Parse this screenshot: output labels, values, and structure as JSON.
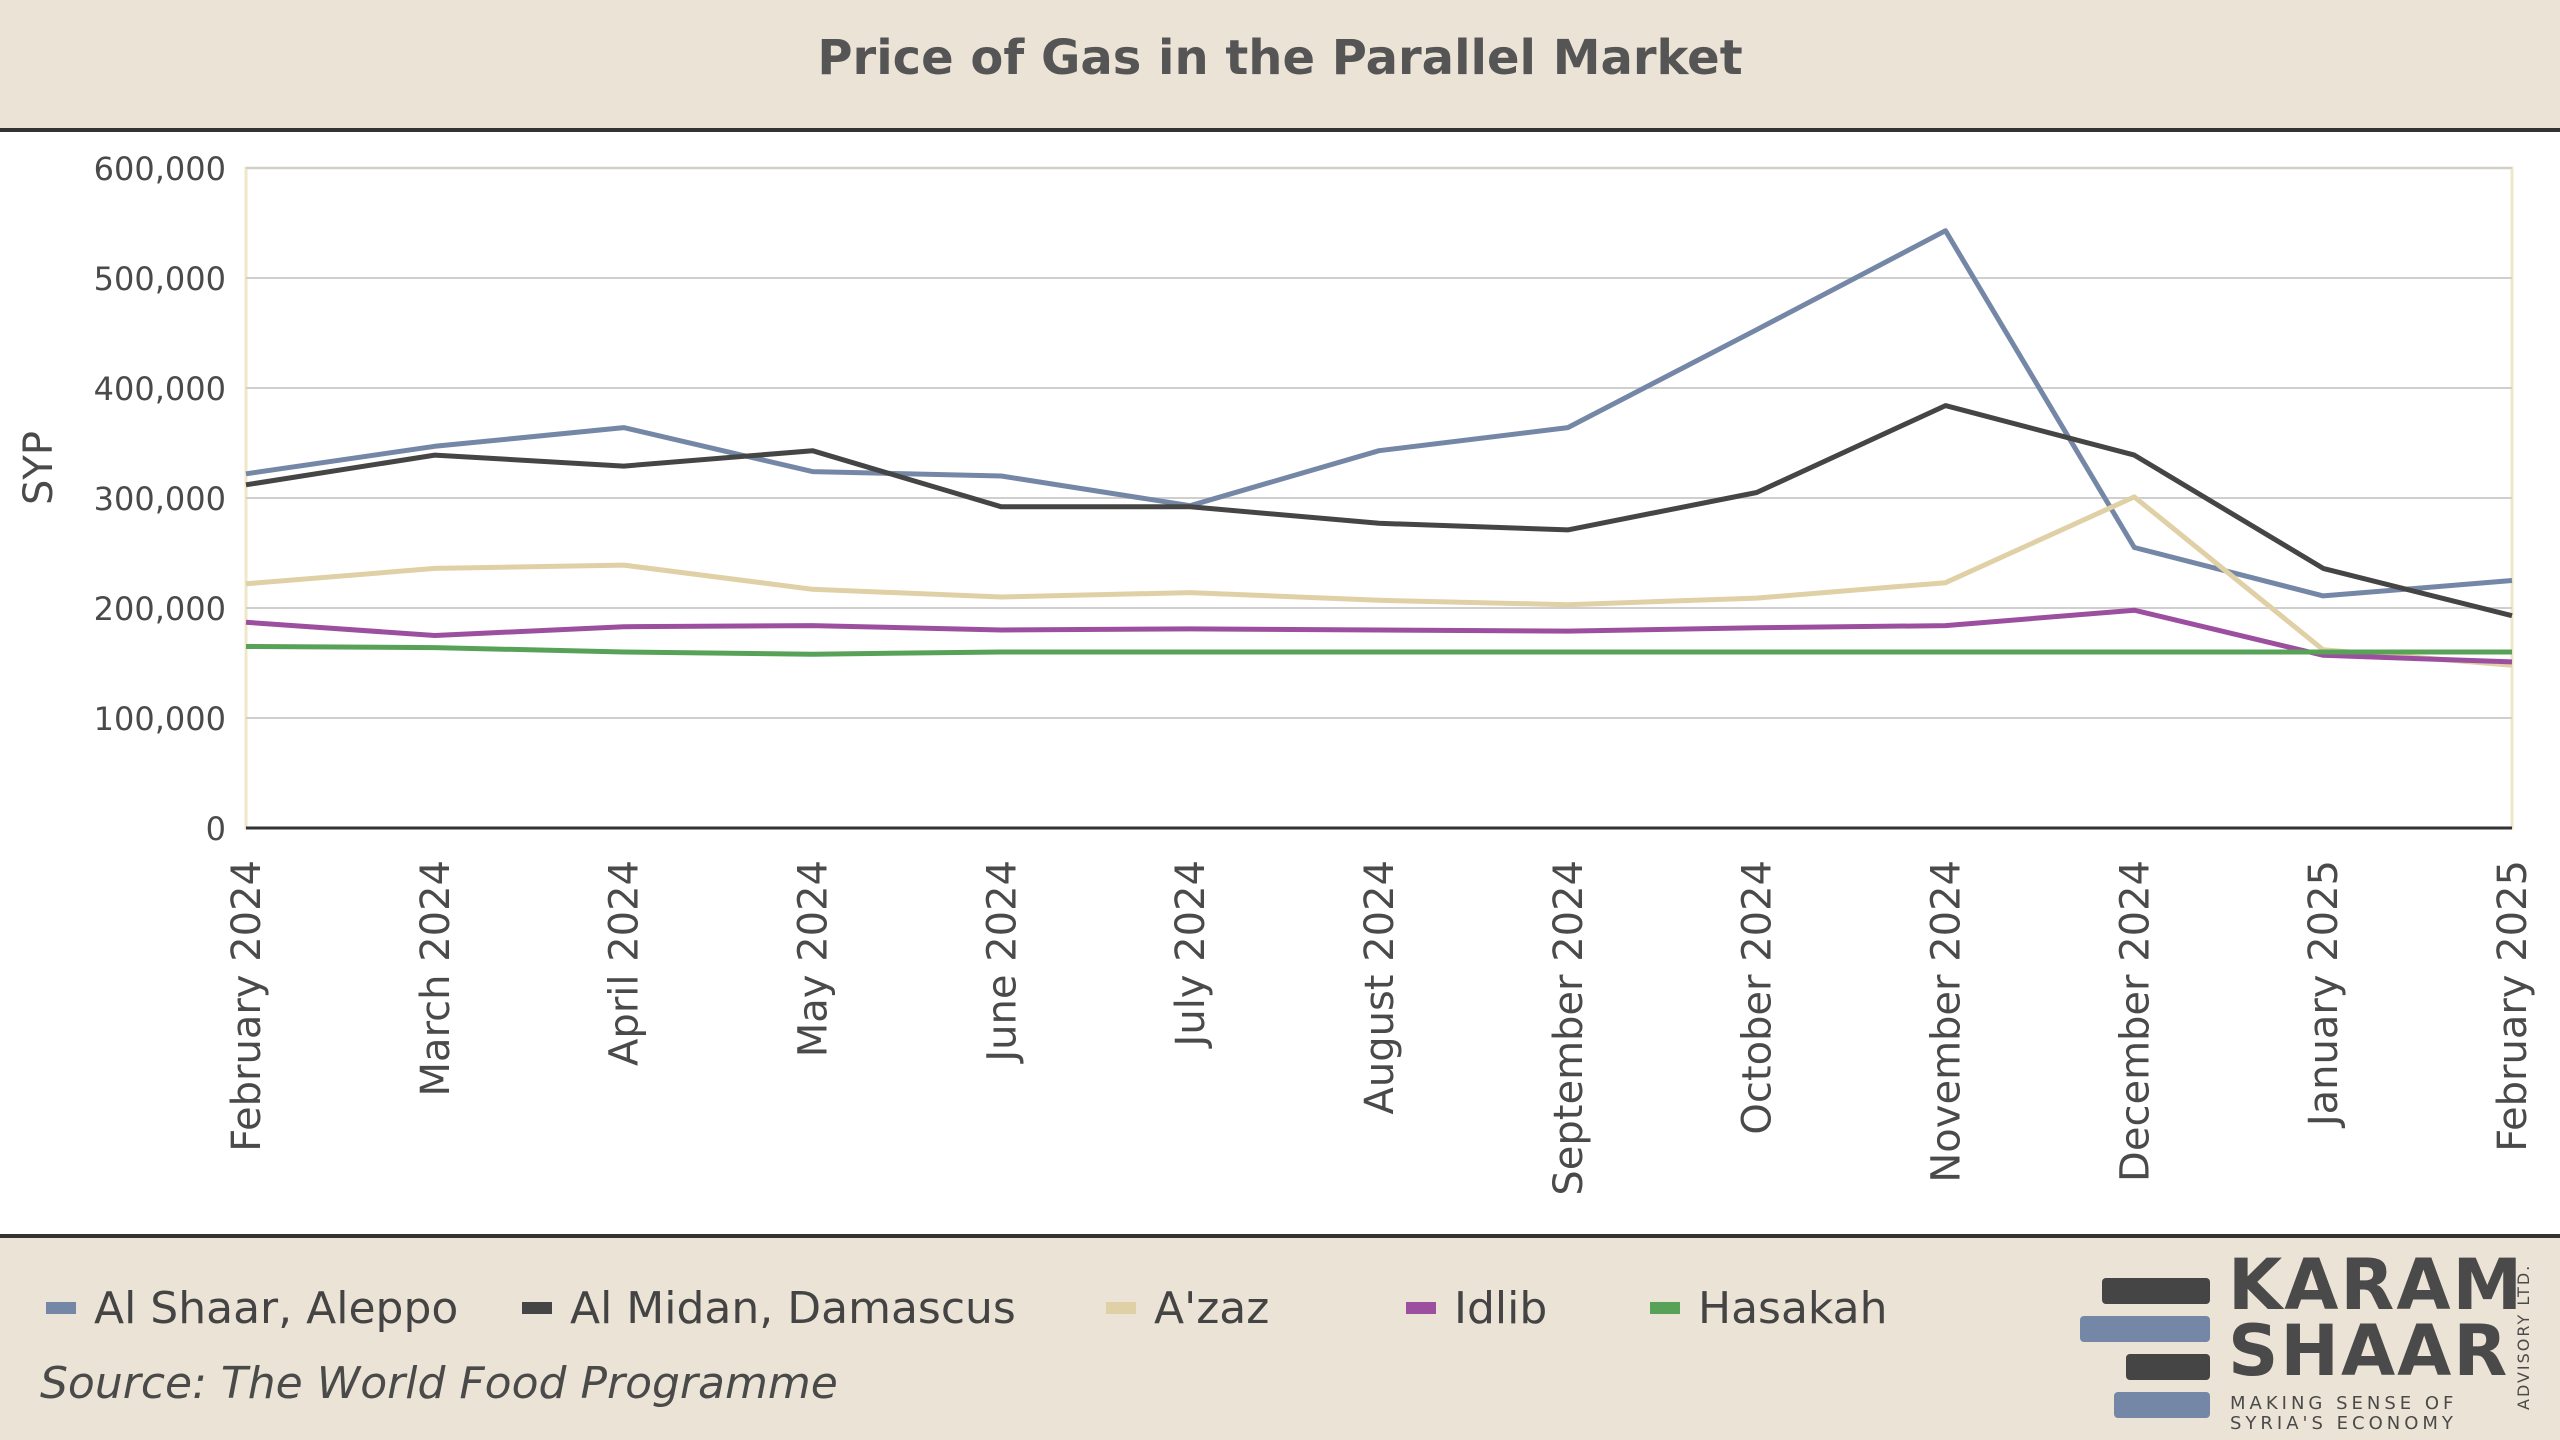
{
  "header": {
    "title": "Price of Gas in the Parallel Market"
  },
  "chart_data": {
    "type": "line",
    "title": "Price of Gas in the Parallel Market",
    "xlabel": "",
    "ylabel": "SYP",
    "ylim": [
      0,
      600000
    ],
    "yticks": [
      0,
      100000,
      200000,
      300000,
      400000,
      500000,
      600000
    ],
    "ytick_labels": [
      "0",
      "100,000",
      "200,000",
      "300,000",
      "400,000",
      "500,000",
      "600,000"
    ],
    "grid": true,
    "legend_position": "bottom-left",
    "categories": [
      "February 2024",
      "March 2024",
      "April 2024",
      "May 2024",
      "June 2024",
      "July 2024",
      "August 2024",
      "September 2024",
      "October 2024",
      "November 2024",
      "December 2024",
      "January 2025",
      "February 2025"
    ],
    "series": [
      {
        "name": "Al Shaar, Aleppo",
        "color": "#7587a6",
        "values": [
          322000,
          347000,
          364000,
          324000,
          320000,
          293000,
          343000,
          364000,
          453000,
          543000,
          255000,
          211000,
          225000
        ]
      },
      {
        "name": "Al Midan, Damascus",
        "color": "#454545",
        "values": [
          312000,
          339000,
          329000,
          343000,
          292000,
          292000,
          277000,
          271000,
          305000,
          384000,
          339000,
          236000,
          193000
        ]
      },
      {
        "name": "A'zaz",
        "color": "#e0d0a6",
        "values": [
          222000,
          236000,
          239000,
          217000,
          210000,
          214000,
          207000,
          203000,
          209000,
          223000,
          301000,
          162000,
          148000
        ]
      },
      {
        "name": "Idlib",
        "color": "#9d4f9f",
        "values": [
          187000,
          175000,
          183000,
          184000,
          180000,
          181000,
          180000,
          179000,
          182000,
          184000,
          198000,
          157000,
          151000
        ]
      },
      {
        "name": "Hasakah",
        "color": "#57a257",
        "values": [
          165000,
          164000,
          160000,
          158000,
          160000,
          160000,
          160000,
          160000,
          160000,
          160000,
          160000,
          160000,
          160000
        ]
      }
    ]
  },
  "footer": {
    "source": "Source: The World Food Programme",
    "logo": {
      "name_line1": "KARAM",
      "name_line2": "SHAAR",
      "tagline_line1": "MAKING SENSE OF",
      "tagline_line2": "SYRIA'S ECONOMY",
      "side_text": "ADVISORY LTD."
    }
  }
}
